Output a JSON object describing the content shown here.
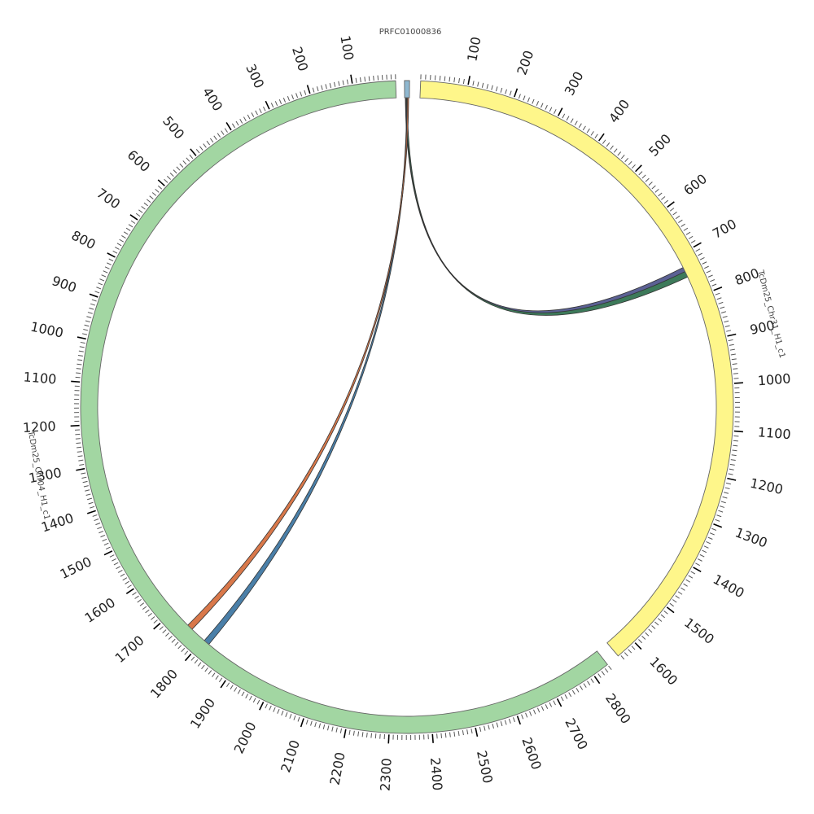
{
  "diagram": {
    "type": "circos",
    "tick_interval": 100,
    "minor_ticks_per_major": 10,
    "contigs": [
      {
        "id": "prfc",
        "name": "PRFC01000836",
        "color": "#8fb8d0",
        "length": 30,
        "ticks": []
      },
      {
        "id": "chr31",
        "name": "TcDm25_Chr31_H1_c1",
        "color": "#fef68a",
        "length": 1645,
        "ticks": [
          "100",
          "200",
          "300",
          "400",
          "500",
          "600",
          "700",
          "800",
          "900",
          "1000",
          "1100",
          "1200",
          "1300",
          "1400",
          "1500",
          "1600"
        ]
      },
      {
        "id": "chr04",
        "name": "TcDm25_Chr04_H1_c1",
        "color": "#a2d6a2",
        "length": 2840,
        "ticks": [
          "100",
          "200",
          "300",
          "400",
          "500",
          "600",
          "700",
          "800",
          "900",
          "1000",
          "1100",
          "1200",
          "1300",
          "1400",
          "1500",
          "1600",
          "1700",
          "1800",
          "1900",
          "2000",
          "2100",
          "2200",
          "2300",
          "2400",
          "2500",
          "2600",
          "2700",
          "2800"
        ]
      }
    ],
    "links": [
      {
        "from": "PRFC01000836",
        "to": "TcDm25_Chr31_H1_c1",
        "to_position": 735,
        "color": "#5b6194"
      },
      {
        "from": "PRFC01000836",
        "to": "TcDm25_Chr31_H1_c1",
        "to_position": 745,
        "color": "#3d7a5a"
      },
      {
        "from": "PRFC01000836",
        "to": "TcDm25_Chr04_H1_c1",
        "to_position": 1810,
        "color": "#4a7fa8"
      },
      {
        "from": "PRFC01000836",
        "to": "TcDm25_Chr04_H1_c1",
        "to_position": 1755,
        "color": "#d9784a"
      }
    ]
  }
}
